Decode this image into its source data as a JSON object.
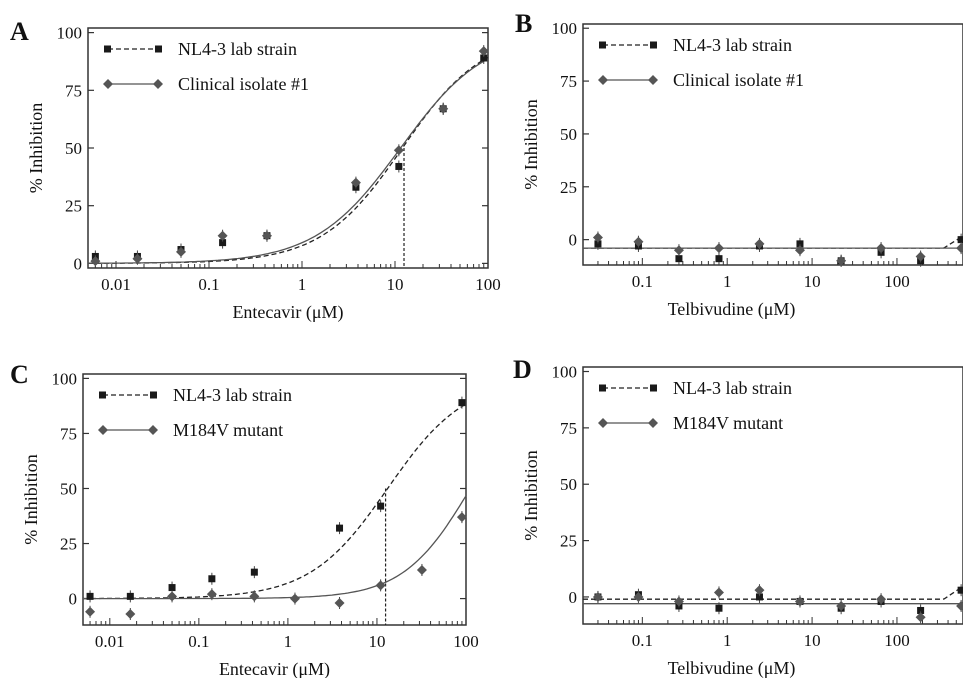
{
  "chart_data": [
    {
      "panel": "A",
      "type": "scatter",
      "xlabel": "Entecavir (μM)",
      "ylabel": "% Inhibition",
      "x_scale": "log",
      "xlim": [
        0.005,
        100
      ],
      "ylim": [
        -2,
        102
      ],
      "x_ticks": [
        0.01,
        0.1,
        1,
        10,
        100
      ],
      "x_tick_labels": [
        "0.01",
        "0.1",
        "1",
        "10",
        "100"
      ],
      "y_ticks": [
        0,
        25,
        50,
        75,
        100
      ],
      "y_tick_labels": [
        "0",
        "25",
        "50",
        "75",
        "100"
      ],
      "legend_position": "top-left",
      "grid": false,
      "series": [
        {
          "name": "NL4-3 lab strain",
          "marker": "square",
          "line": "dashed",
          "x": [
            0.006,
            0.017,
            0.05,
            0.14,
            0.42,
            3.8,
            11,
            33,
            90
          ],
          "y": [
            3,
            3,
            6,
            9,
            12,
            33,
            42,
            67,
            89
          ]
        },
        {
          "name": "Clinical isolate #1",
          "marker": "diamond",
          "line": "solid",
          "x": [
            0.006,
            0.017,
            0.05,
            0.14,
            0.42,
            3.8,
            11,
            33,
            90
          ],
          "y": [
            1,
            2,
            5,
            12,
            12,
            35,
            49,
            67,
            92
          ]
        }
      ],
      "ic50_marker_x": 12.5
    },
    {
      "panel": "B",
      "type": "scatter",
      "xlabel": "Telbivudine (μM)",
      "ylabel": "% Inhibition",
      "x_scale": "log",
      "xlim": [
        0.02,
        600
      ],
      "ylim": [
        -12,
        102
      ],
      "x_ticks": [
        0.1,
        1,
        10,
        100
      ],
      "x_tick_labels": [
        "0.1",
        "1",
        "10",
        "100"
      ],
      "y_ticks": [
        0,
        25,
        50,
        75,
        100
      ],
      "y_tick_labels": [
        "0",
        "25",
        "50",
        "75",
        "100"
      ],
      "legend_position": "top-left",
      "grid": false,
      "series": [
        {
          "name": "NL4-3 lab strain",
          "marker": "square",
          "line": "dashed",
          "x": [
            0.03,
            0.09,
            0.27,
            0.8,
            2.4,
            7.2,
            22,
            65,
            190,
            570
          ],
          "y": [
            -2,
            -3,
            -9,
            -9,
            -3,
            -2,
            -10,
            -6,
            -10,
            0
          ]
        },
        {
          "name": "Clinical isolate #1",
          "marker": "diamond",
          "line": "solid",
          "x": [
            0.03,
            0.09,
            0.27,
            0.8,
            2.4,
            7.2,
            22,
            65,
            190,
            570
          ],
          "y": [
            1,
            -1,
            -5,
            -4,
            -2,
            -5,
            -10,
            -4,
            -8,
            -4
          ]
        }
      ]
    },
    {
      "panel": "C",
      "type": "scatter",
      "xlabel": "Entecavir (μM)",
      "ylabel": "% Inhibition",
      "x_scale": "log",
      "xlim": [
        0.005,
        100
      ],
      "ylim": [
        -12,
        102
      ],
      "x_ticks": [
        0.01,
        0.1,
        1,
        10,
        100
      ],
      "x_tick_labels": [
        "0.01",
        "0.1",
        "1",
        "10",
        "100"
      ],
      "y_ticks": [
        0,
        25,
        50,
        75,
        100
      ],
      "y_tick_labels": [
        "0",
        "25",
        "50",
        "75",
        "100"
      ],
      "legend_position": "top-left",
      "grid": false,
      "series": [
        {
          "name": "NL4-3 lab strain",
          "marker": "square",
          "line": "dashed",
          "x": [
            0.006,
            0.017,
            0.05,
            0.14,
            0.42,
            3.8,
            11,
            90
          ],
          "y": [
            1,
            1,
            5,
            9,
            12,
            32,
            42,
            89
          ]
        },
        {
          "name": "M184V mutant",
          "marker": "diamond",
          "line": "solid",
          "x": [
            0.006,
            0.017,
            0.05,
            0.14,
            0.42,
            1.2,
            3.8,
            11,
            32,
            90
          ],
          "y": [
            -6,
            -7,
            1,
            2,
            1,
            0,
            -2,
            6,
            13,
            37
          ]
        }
      ],
      "ic50_marker_x": 12.5
    },
    {
      "panel": "D",
      "type": "scatter",
      "xlabel": "Telbivudine (μM)",
      "ylabel": "% Inhibition",
      "x_scale": "log",
      "xlim": [
        0.02,
        600
      ],
      "ylim": [
        -12,
        102
      ],
      "x_ticks": [
        0.1,
        1,
        10,
        100
      ],
      "x_tick_labels": [
        "0.1",
        "1",
        "10",
        "100"
      ],
      "y_ticks": [
        0,
        25,
        50,
        75,
        100
      ],
      "y_tick_labels": [
        "0",
        "25",
        "50",
        "75",
        "100"
      ],
      "legend_position": "top-left",
      "grid": false,
      "series": [
        {
          "name": "NL4-3 lab strain",
          "marker": "square",
          "line": "dashed",
          "x": [
            0.03,
            0.09,
            0.27,
            0.8,
            2.4,
            7.2,
            22,
            65,
            190,
            570
          ],
          "y": [
            0,
            1,
            -4,
            -5,
            0,
            -2,
            -5,
            -2,
            -6,
            3
          ]
        },
        {
          "name": "M184V mutant",
          "marker": "diamond",
          "line": "solid",
          "x": [
            0.03,
            0.09,
            0.27,
            0.8,
            2.4,
            7.2,
            22,
            65,
            190,
            570
          ],
          "y": [
            0,
            0,
            -2,
            2,
            3,
            -2,
            -4,
            -1,
            -9,
            -4
          ]
        }
      ]
    }
  ]
}
